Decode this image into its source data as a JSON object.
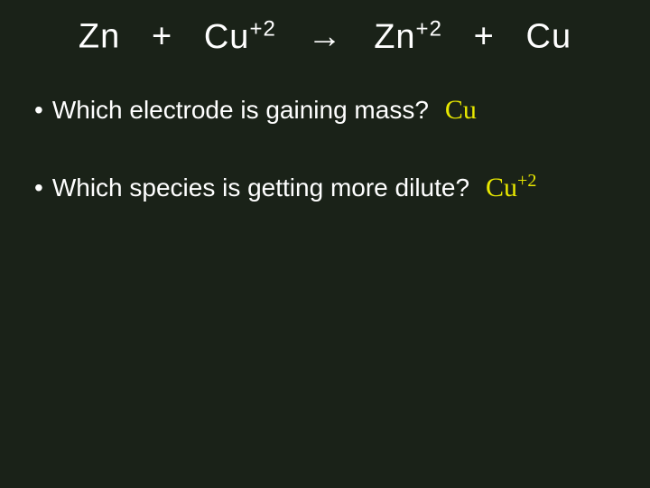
{
  "equation": {
    "r1": "Zn",
    "plus1": "+",
    "r2_base": "Cu",
    "r2_sup": "+2",
    "arrow": "→",
    "p1_base": "Zn",
    "p1_sup": "+2",
    "plus2": "+",
    "p2": "Cu"
  },
  "bullets": [
    {
      "question": "Which electrode is gaining mass?",
      "answer_base": "Cu",
      "answer_sup": ""
    },
    {
      "question": "Which species is getting more dilute?",
      "answer_base": "Cu",
      "answer_sup": "+2"
    }
  ],
  "colors": {
    "background": "#1a2218",
    "text": "#ffffff",
    "answer": "#e8e800"
  }
}
